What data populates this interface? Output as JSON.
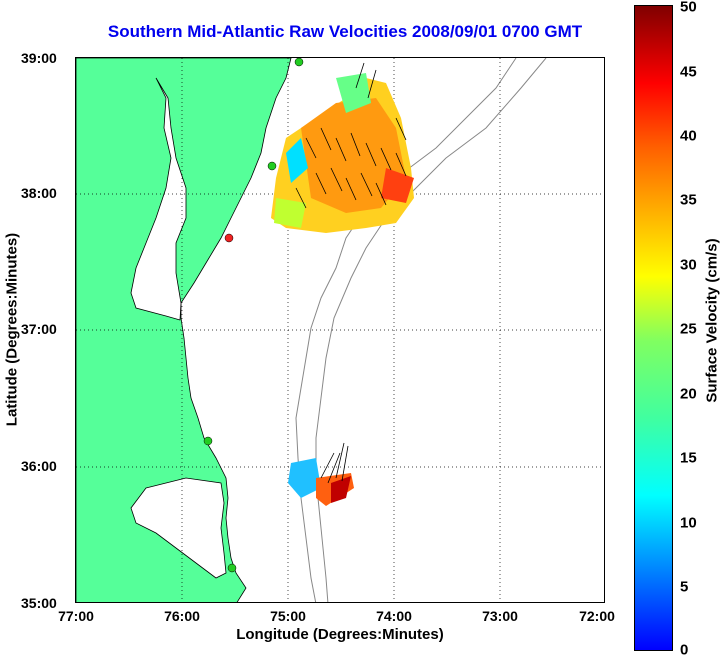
{
  "title": "Southern Mid-Atlantic Raw Velocities 2008/09/01 0700 GMT",
  "x_axis": {
    "label": "Longitude (Degrees:Minutes)",
    "ticks": [
      "77:00",
      "76:00",
      "75:00",
      "74:00",
      "73:00",
      "72:00"
    ]
  },
  "y_axis": {
    "label": "Latitude (Degrees:Minutes)",
    "ticks": [
      "39:00",
      "38:00",
      "37:00",
      "36:00",
      "35:00"
    ]
  },
  "colorbar": {
    "label": "Surface Velocity (cm/s)",
    "ticks": [
      "50",
      "45",
      "40",
      "35",
      "30",
      "25",
      "20",
      "15",
      "10",
      "5",
      "0"
    ],
    "min": 0,
    "max": 50
  },
  "map": {
    "lon_range": [
      -77,
      -72
    ],
    "lat_range": [
      35,
      39
    ],
    "land_color": "#55ff99",
    "grid": "dotted",
    "stations": [
      {
        "lon": -75.1,
        "lat": 38.98,
        "color": "#22cc22"
      },
      {
        "lon": -75.15,
        "lat": 38.22,
        "color": "#22cc22"
      },
      {
        "lon": -75.55,
        "lat": 37.7,
        "color": "#ee2222"
      },
      {
        "lon": -75.75,
        "lat": 36.17,
        "color": "#22cc22"
      },
      {
        "lon": -75.55,
        "lat": 35.25,
        "color": "#22cc22"
      }
    ]
  }
}
